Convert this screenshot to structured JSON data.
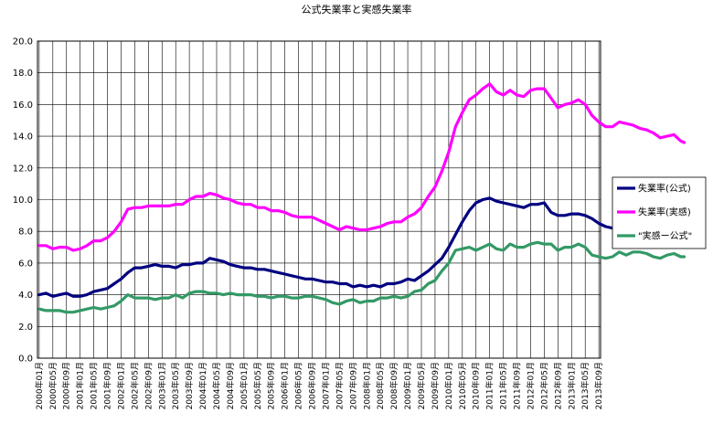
{
  "chart_data": {
    "type": "line",
    "title": "公式失業率と実感失業率",
    "ylim": [
      0,
      20
    ],
    "yticks": [
      "0.0",
      "2.0",
      "4.0",
      "6.0",
      "8.0",
      "10.0",
      "12.0",
      "14.0",
      "16.0",
      "18.0",
      "20.0"
    ],
    "grid": true,
    "legend_position": "right",
    "x_tick_labels": [
      "2000年01月",
      "2000年05月",
      "2000年09月",
      "2001年01月",
      "2001年05月",
      "2001年09月",
      "2002年01月",
      "2002年05月",
      "2002年09月",
      "2003年01月",
      "2003年05月",
      "2003年09月",
      "2004年01月",
      "2004年05月",
      "2004年09月",
      "2005年01月",
      "2005年05月",
      "2005年09月",
      "2006年01月",
      "2006年05月",
      "2006年09月",
      "2007年01月",
      "2007年05月",
      "2007年09月",
      "2008年01月",
      "2008年05月",
      "2008年09月",
      "2009年01月",
      "2009年05月",
      "2009年09月",
      "2010年01月",
      "2010年05月",
      "2010年09月",
      "2011年01月",
      "2011年05月",
      "2011年09月",
      "2012年01月",
      "2012年05月",
      "2012年09月",
      "2013年01月",
      "2013年05月",
      "2013年09月"
    ],
    "x_start": "2000-01",
    "x_end": "2013-09",
    "series": [
      {
        "name": "失業率(公式)",
        "color": "#000080",
        "values": [
          [
            0,
            4.0
          ],
          [
            2,
            4.1
          ],
          [
            4,
            3.9
          ],
          [
            6,
            4.0
          ],
          [
            8,
            4.1
          ],
          [
            10,
            3.9
          ],
          [
            12,
            3.9
          ],
          [
            14,
            4.0
          ],
          [
            16,
            4.2
          ],
          [
            18,
            4.3
          ],
          [
            20,
            4.4
          ],
          [
            22,
            4.7
          ],
          [
            24,
            5.0
          ],
          [
            26,
            5.4
          ],
          [
            28,
            5.7
          ],
          [
            30,
            5.7
          ],
          [
            32,
            5.8
          ],
          [
            34,
            5.9
          ],
          [
            36,
            5.8
          ],
          [
            38,
            5.8
          ],
          [
            40,
            5.7
          ],
          [
            42,
            5.9
          ],
          [
            44,
            5.9
          ],
          [
            46,
            6.0
          ],
          [
            48,
            6.0
          ],
          [
            50,
            6.3
          ],
          [
            52,
            6.2
          ],
          [
            54,
            6.1
          ],
          [
            56,
            5.9
          ],
          [
            58,
            5.8
          ],
          [
            60,
            5.7
          ],
          [
            62,
            5.7
          ],
          [
            64,
            5.6
          ],
          [
            66,
            5.6
          ],
          [
            68,
            5.5
          ],
          [
            70,
            5.4
          ],
          [
            72,
            5.3
          ],
          [
            74,
            5.2
          ],
          [
            76,
            5.1
          ],
          [
            78,
            5.0
          ],
          [
            80,
            5.0
          ],
          [
            82,
            4.9
          ],
          [
            84,
            4.8
          ],
          [
            86,
            4.8
          ],
          [
            88,
            4.7
          ],
          [
            90,
            4.7
          ],
          [
            92,
            4.5
          ],
          [
            94,
            4.6
          ],
          [
            96,
            4.5
          ],
          [
            98,
            4.6
          ],
          [
            100,
            4.5
          ],
          [
            102,
            4.7
          ],
          [
            104,
            4.7
          ],
          [
            106,
            4.8
          ],
          [
            108,
            5.0
          ],
          [
            110,
            4.9
          ],
          [
            112,
            5.2
          ],
          [
            114,
            5.5
          ],
          [
            116,
            5.9
          ],
          [
            118,
            6.3
          ],
          [
            120,
            7.0
          ],
          [
            122,
            7.8
          ],
          [
            124,
            8.6
          ],
          [
            126,
            9.3
          ],
          [
            128,
            9.8
          ],
          [
            130,
            10.0
          ],
          [
            132,
            10.1
          ],
          [
            134,
            9.9
          ],
          [
            136,
            9.8
          ],
          [
            138,
            9.7
          ],
          [
            140,
            9.6
          ],
          [
            142,
            9.5
          ],
          [
            144,
            9.7
          ],
          [
            146,
            9.7
          ],
          [
            148,
            9.8
          ],
          [
            150,
            9.2
          ],
          [
            152,
            9.0
          ],
          [
            154,
            9.0
          ],
          [
            156,
            9.1
          ],
          [
            158,
            9.1
          ],
          [
            160,
            9.0
          ],
          [
            162,
            8.8
          ],
          [
            164,
            8.5
          ],
          [
            166,
            8.3
          ],
          [
            168,
            8.2
          ],
          [
            170,
            8.2
          ],
          [
            172,
            8.3
          ],
          [
            174,
            8.0
          ],
          [
            176,
            7.8
          ],
          [
            178,
            7.8
          ],
          [
            180,
            7.8
          ],
          [
            182,
            7.6
          ],
          [
            184,
            7.5
          ],
          [
            186,
            7.5
          ],
          [
            188,
            7.3
          ],
          [
            189,
            7.2
          ]
        ]
      },
      {
        "name": "失業率(実感)",
        "color": "#ff00ff",
        "values": [
          [
            0,
            7.1
          ],
          [
            2,
            7.1
          ],
          [
            4,
            6.9
          ],
          [
            6,
            7.0
          ],
          [
            8,
            7.0
          ],
          [
            10,
            6.8
          ],
          [
            12,
            6.9
          ],
          [
            14,
            7.1
          ],
          [
            16,
            7.4
          ],
          [
            18,
            7.4
          ],
          [
            20,
            7.6
          ],
          [
            22,
            8.0
          ],
          [
            24,
            8.6
          ],
          [
            26,
            9.4
          ],
          [
            28,
            9.5
          ],
          [
            30,
            9.5
          ],
          [
            32,
            9.6
          ],
          [
            34,
            9.6
          ],
          [
            36,
            9.6
          ],
          [
            38,
            9.6
          ],
          [
            40,
            9.7
          ],
          [
            42,
            9.7
          ],
          [
            44,
            10.0
          ],
          [
            46,
            10.2
          ],
          [
            48,
            10.2
          ],
          [
            50,
            10.4
          ],
          [
            52,
            10.3
          ],
          [
            54,
            10.1
          ],
          [
            56,
            10.0
          ],
          [
            58,
            9.8
          ],
          [
            60,
            9.7
          ],
          [
            62,
            9.7
          ],
          [
            64,
            9.5
          ],
          [
            66,
            9.5
          ],
          [
            68,
            9.3
          ],
          [
            70,
            9.3
          ],
          [
            72,
            9.2
          ],
          [
            74,
            9.0
          ],
          [
            76,
            8.9
          ],
          [
            78,
            8.9
          ],
          [
            80,
            8.9
          ],
          [
            82,
            8.7
          ],
          [
            84,
            8.5
          ],
          [
            86,
            8.3
          ],
          [
            88,
            8.1
          ],
          [
            90,
            8.3
          ],
          [
            92,
            8.2
          ],
          [
            94,
            8.1
          ],
          [
            96,
            8.1
          ],
          [
            98,
            8.2
          ],
          [
            100,
            8.3
          ],
          [
            102,
            8.5
          ],
          [
            104,
            8.6
          ],
          [
            106,
            8.6
          ],
          [
            108,
            8.9
          ],
          [
            110,
            9.1
          ],
          [
            112,
            9.5
          ],
          [
            114,
            10.2
          ],
          [
            116,
            10.8
          ],
          [
            118,
            11.8
          ],
          [
            120,
            13.0
          ],
          [
            122,
            14.6
          ],
          [
            124,
            15.5
          ],
          [
            126,
            16.3
          ],
          [
            128,
            16.6
          ],
          [
            130,
            17.0
          ],
          [
            132,
            17.3
          ],
          [
            134,
            16.8
          ],
          [
            136,
            16.6
          ],
          [
            138,
            16.9
          ],
          [
            140,
            16.6
          ],
          [
            142,
            16.5
          ],
          [
            144,
            16.9
          ],
          [
            146,
            17.0
          ],
          [
            148,
            17.0
          ],
          [
            150,
            16.4
          ],
          [
            152,
            15.8
          ],
          [
            154,
            16.0
          ],
          [
            156,
            16.1
          ],
          [
            158,
            16.3
          ],
          [
            160,
            16.0
          ],
          [
            162,
            15.3
          ],
          [
            164,
            14.9
          ],
          [
            166,
            14.6
          ],
          [
            168,
            14.6
          ],
          [
            170,
            14.9
          ],
          [
            172,
            14.8
          ],
          [
            174,
            14.7
          ],
          [
            176,
            14.5
          ],
          [
            178,
            14.4
          ],
          [
            180,
            14.2
          ],
          [
            182,
            13.9
          ],
          [
            184,
            14.0
          ],
          [
            186,
            14.1
          ],
          [
            188,
            13.7
          ],
          [
            189,
            13.6
          ]
        ]
      },
      {
        "name": "\"実感ー公式\"",
        "color": "#339966",
        "values": [
          [
            0,
            3.1
          ],
          [
            2,
            3.0
          ],
          [
            4,
            3.0
          ],
          [
            6,
            3.0
          ],
          [
            8,
            2.9
          ],
          [
            10,
            2.9
          ],
          [
            12,
            3.0
          ],
          [
            14,
            3.1
          ],
          [
            16,
            3.2
          ],
          [
            18,
            3.1
          ],
          [
            20,
            3.2
          ],
          [
            22,
            3.3
          ],
          [
            24,
            3.6
          ],
          [
            26,
            4.0
          ],
          [
            28,
            3.8
          ],
          [
            30,
            3.8
          ],
          [
            32,
            3.8
          ],
          [
            34,
            3.7
          ],
          [
            36,
            3.8
          ],
          [
            38,
            3.8
          ],
          [
            40,
            4.0
          ],
          [
            42,
            3.8
          ],
          [
            44,
            4.1
          ],
          [
            46,
            4.2
          ],
          [
            48,
            4.2
          ],
          [
            50,
            4.1
          ],
          [
            52,
            4.1
          ],
          [
            54,
            4.0
          ],
          [
            56,
            4.1
          ],
          [
            58,
            4.0
          ],
          [
            60,
            4.0
          ],
          [
            62,
            4.0
          ],
          [
            64,
            3.9
          ],
          [
            66,
            3.9
          ],
          [
            68,
            3.8
          ],
          [
            70,
            3.9
          ],
          [
            72,
            3.9
          ],
          [
            74,
            3.8
          ],
          [
            76,
            3.8
          ],
          [
            78,
            3.9
          ],
          [
            80,
            3.9
          ],
          [
            82,
            3.8
          ],
          [
            84,
            3.7
          ],
          [
            86,
            3.5
          ],
          [
            88,
            3.4
          ],
          [
            90,
            3.6
          ],
          [
            92,
            3.7
          ],
          [
            94,
            3.5
          ],
          [
            96,
            3.6
          ],
          [
            98,
            3.6
          ],
          [
            100,
            3.8
          ],
          [
            102,
            3.8
          ],
          [
            104,
            3.9
          ],
          [
            106,
            3.8
          ],
          [
            108,
            3.9
          ],
          [
            110,
            4.2
          ],
          [
            112,
            4.3
          ],
          [
            114,
            4.7
          ],
          [
            116,
            4.9
          ],
          [
            118,
            5.5
          ],
          [
            120,
            6.0
          ],
          [
            122,
            6.8
          ],
          [
            124,
            6.9
          ],
          [
            126,
            7.0
          ],
          [
            128,
            6.8
          ],
          [
            130,
            7.0
          ],
          [
            132,
            7.2
          ],
          [
            134,
            6.9
          ],
          [
            136,
            6.8
          ],
          [
            138,
            7.2
          ],
          [
            140,
            7.0
          ],
          [
            142,
            7.0
          ],
          [
            144,
            7.2
          ],
          [
            146,
            7.3
          ],
          [
            148,
            7.2
          ],
          [
            150,
            7.2
          ],
          [
            152,
            6.8
          ],
          [
            154,
            7.0
          ],
          [
            156,
            7.0
          ],
          [
            158,
            7.2
          ],
          [
            160,
            7.0
          ],
          [
            162,
            6.5
          ],
          [
            164,
            6.4
          ],
          [
            166,
            6.3
          ],
          [
            168,
            6.4
          ],
          [
            170,
            6.7
          ],
          [
            172,
            6.5
          ],
          [
            174,
            6.7
          ],
          [
            176,
            6.7
          ],
          [
            178,
            6.6
          ],
          [
            180,
            6.4
          ],
          [
            182,
            6.3
          ],
          [
            184,
            6.5
          ],
          [
            186,
            6.6
          ],
          [
            188,
            6.4
          ],
          [
            189,
            6.4
          ]
        ]
      }
    ]
  }
}
